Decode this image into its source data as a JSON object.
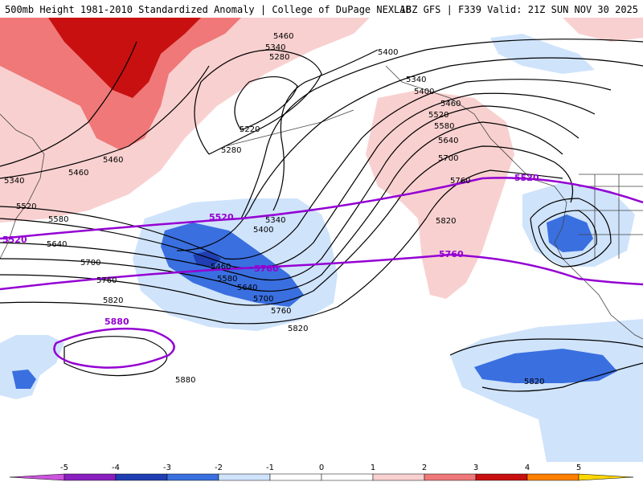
{
  "header": {
    "title_left": "500mb Height 1981-2010 Standardized Anomaly | College of DuPage NEXLAB",
    "title_right": "18Z GFS | F339 Valid: 21Z SUN NOV 30 2025"
  },
  "colors": {
    "neg5": "#cc55dd",
    "neg4": "#8a1fbf",
    "neg3": "#1f3fb3",
    "neg2": "#3a6fe0",
    "neg1": "#cfe3fb",
    "pos1": "#f9d0d0",
    "pos2": "#f07878",
    "pos3": "#c81010",
    "pos4": "#ff7f00",
    "pos5": "#ffd700",
    "purple_line": "#9400d3"
  },
  "colorbar": {
    "ticks": [
      "-5",
      "-4",
      "-3",
      "-2",
      "-1",
      "0",
      "1",
      "2",
      "3",
      "4",
      "5"
    ]
  },
  "contour_labels": {
    "black": [
      "5460",
      "5340",
      "5280",
      "5400",
      "5340",
      "5400",
      "5460",
      "5520",
      "5580",
      "5640",
      "5700",
      "5760",
      "5820",
      "5220",
      "5280",
      "5460",
      "5340",
      "5460",
      "5520",
      "5580",
      "5640",
      "5700",
      "5760",
      "5820",
      "5880",
      "5340",
      "5400",
      "5460",
      "5580",
      "5640",
      "5700",
      "5760",
      "5820",
      "5820"
    ],
    "purple": [
      "5520",
      "5520",
      "5520",
      "5760",
      "5760",
      "5880"
    ]
  }
}
